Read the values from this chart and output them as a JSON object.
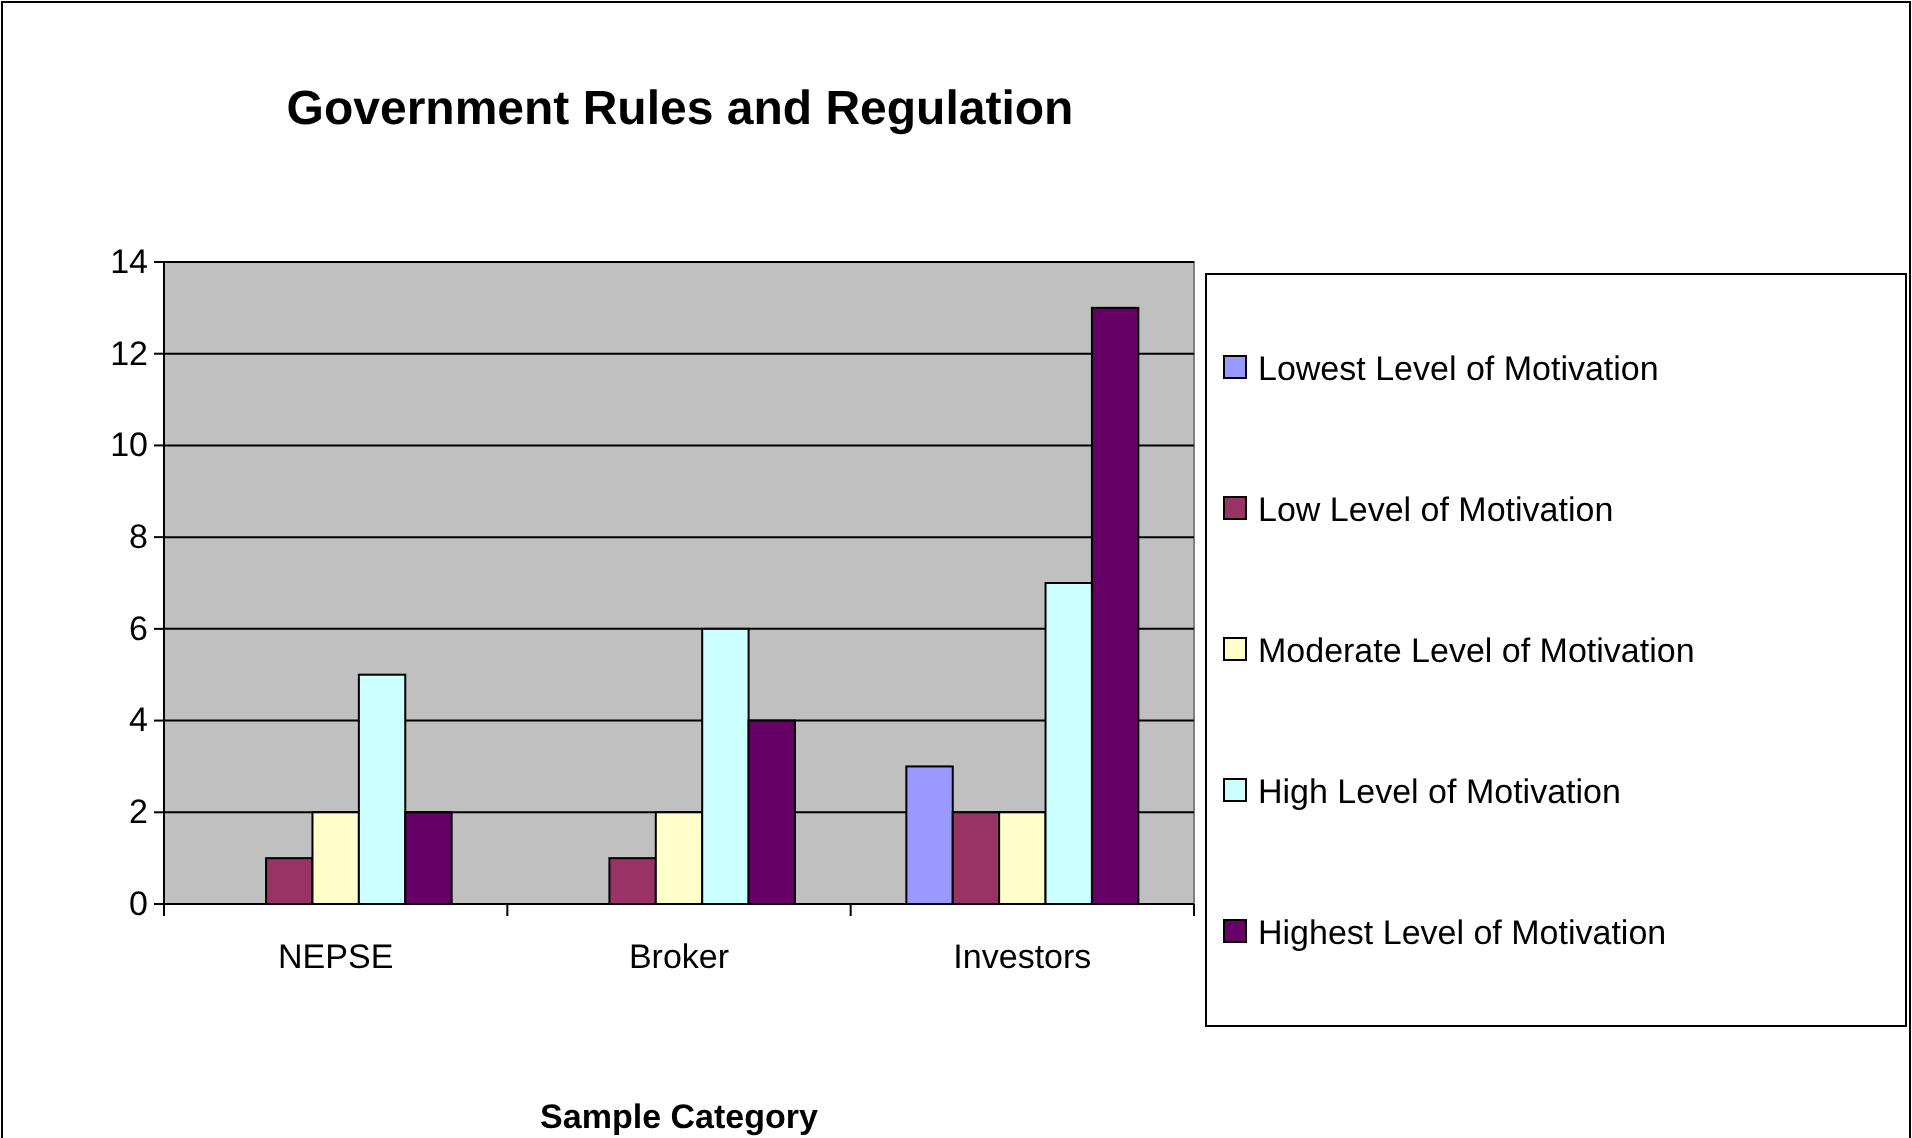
{
  "chart_data": {
    "type": "bar",
    "title": "Government Rules and Regulation",
    "xlabel": "Sample Category",
    "categories": [
      "NEPSE",
      "Broker",
      "Investors"
    ],
    "series": [
      {
        "name": "Lowest Level of Motivation",
        "color": "#9999ff",
        "values": [
          0,
          0,
          3
        ]
      },
      {
        "name": "Low Level of Motivation",
        "color": "#993366",
        "values": [
          1,
          1,
          2
        ]
      },
      {
        "name": "Moderate Level of Motivation",
        "color": "#ffffcc",
        "values": [
          2,
          2,
          2
        ]
      },
      {
        "name": "High Level of Motivation",
        "color": "#ccffff",
        "values": [
          5,
          6,
          7
        ]
      },
      {
        "name": "Highest Level of Motivation",
        "color": "#660066",
        "values": [
          2,
          4,
          13
        ]
      }
    ],
    "ylim": [
      0,
      14
    ],
    "yticks": [
      0,
      2,
      4,
      6,
      8,
      10,
      12,
      14
    ],
    "grid": "y",
    "legend": "right"
  }
}
